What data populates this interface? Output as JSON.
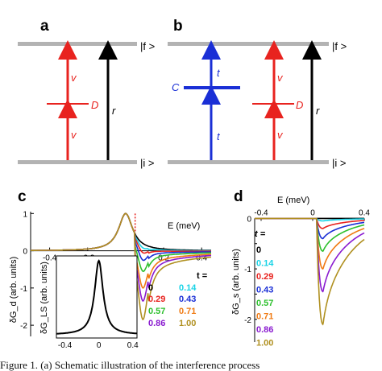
{
  "panels": {
    "a": {
      "letter": "a",
      "top_label": "|f >",
      "bottom_label": "|i >",
      "v_label_top": "v",
      "v_label_bottom": "v",
      "d_label": "D",
      "r_label": "r"
    },
    "b": {
      "letter": "b",
      "top_label": "|f >",
      "bottom_label": "|i >",
      "t_label_top": "t",
      "t_label_bottom": "t",
      "c_label": "C",
      "v_label_top": "v",
      "v_label_bottom": "v",
      "d_label": "D",
      "r_label": "r"
    },
    "c": {
      "letter": "c",
      "xlabel": "E (meV)",
      "ylabel": "δG_d (arb. units)",
      "inset_ylabel": "δG_LS (arb. units)"
    },
    "d": {
      "letter": "d",
      "xlabel": "E (meV)",
      "ylabel": "δG_s (arb. units)"
    }
  },
  "legend": {
    "title": "t =",
    "entries": [
      {
        "label": "0",
        "color": "#000000"
      },
      {
        "label": "0.14",
        "color": "#19d3e6"
      },
      {
        "label": "0.29",
        "color": "#e8231f"
      },
      {
        "label": "0.43",
        "color": "#1a2fd6"
      },
      {
        "label": "0.57",
        "color": "#2ec02e"
      },
      {
        "label": "0.71",
        "color": "#f07a12"
      },
      {
        "label": "0.86",
        "color": "#8a1bd0"
      },
      {
        "label": "1.00",
        "color": "#b09020"
      }
    ]
  },
  "colors": {
    "level": "#b3b3b3",
    "red": "#e8231f",
    "blue": "#1a2fd6",
    "black": "#000000"
  },
  "chart_data": [
    {
      "type": "line",
      "panel": "c",
      "xlabel": "E (meV)",
      "ylabel": "δG_d (arb. units)",
      "xlim": [
        -0.5,
        0.45
      ],
      "ylim": [
        -2.3,
        1.05
      ],
      "x_ticks": [
        -0.4,
        -0.2,
        0.2,
        0.4
      ],
      "y_ticks": [
        -2,
        -1,
        0,
        1
      ],
      "resonance_x": 0.05,
      "series": [
        {
          "name": "0",
          "peak_x": 0.0,
          "peak": 1.0,
          "dip": 0.0
        },
        {
          "name": "0.14",
          "peak_x": 0.0,
          "peak": 1.0,
          "dip": -0.12
        },
        {
          "name": "0.29",
          "peak_x": 0.0,
          "peak": 1.0,
          "dip": -0.25
        },
        {
          "name": "0.43",
          "peak_x": 0.0,
          "peak": 1.0,
          "dip": -0.45
        },
        {
          "name": "0.57",
          "peak_x": 0.0,
          "peak": 1.0,
          "dip": -0.75
        },
        {
          "name": "0.71",
          "peak_x": 0.0,
          "peak": 1.0,
          "dip": -1.2
        },
        {
          "name": "0.86",
          "peak_x": 0.0,
          "peak": 1.0,
          "dip": -1.55
        },
        {
          "name": "1.00",
          "peak_x": 0.0,
          "peak": 1.0,
          "dip": -2.05
        }
      ]
    },
    {
      "type": "line",
      "panel": "c-inset",
      "ylabel": "δG_LS (arb. units)",
      "xlim": [
        -0.5,
        0.45
      ],
      "x_ticks": [
        -0.4,
        0.0,
        0.4
      ],
      "series": [
        {
          "name": "",
          "center": 0.0,
          "width": 0.06
        }
      ]
    },
    {
      "type": "line",
      "panel": "d",
      "xlabel": "E (meV)",
      "ylabel": "δG_s (arb. units)",
      "xlim": [
        -0.45,
        0.4
      ],
      "ylim": [
        -2.45,
        0.15
      ],
      "x_ticks": [
        -0.4,
        0.0,
        0.4
      ],
      "y_ticks": [
        -2,
        -1.5,
        -1,
        -0.5,
        0
      ],
      "series": [
        {
          "name": "0",
          "dip": 0.0
        },
        {
          "name": "0.14",
          "dip": -0.05
        },
        {
          "name": "0.29",
          "dip": -0.2
        },
        {
          "name": "0.43",
          "dip": -0.4
        },
        {
          "name": "0.57",
          "dip": -0.65
        },
        {
          "name": "0.71",
          "dip": -1.0
        },
        {
          "name": "0.86",
          "dip": -1.45
        },
        {
          "name": "1.00",
          "dip": -2.1
        }
      ]
    }
  ],
  "caption": "Figure 1. (a) Schematic illustration of the interference process"
}
